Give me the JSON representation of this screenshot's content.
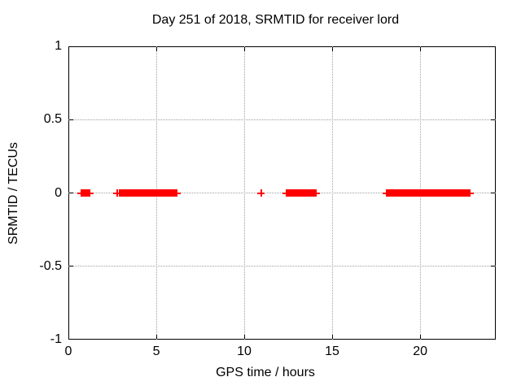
{
  "chart_data": {
    "type": "scatter",
    "title": "Day 251 of 2018, SRMTID for receiver lord",
    "xlabel": "GPS time / hours",
    "ylabel": "SRMTID / TECUs",
    "xlim": [
      0,
      24.3
    ],
    "ylim": [
      -1,
      1
    ],
    "xticks": [
      0,
      5,
      10,
      15,
      20
    ],
    "xtick_labels": [
      "0",
      "5",
      "10",
      "15",
      "20"
    ],
    "yticks": [
      -1,
      -0.5,
      0,
      0.5,
      1
    ],
    "ytick_labels": [
      "-1",
      "-0.5",
      "0",
      "0.5",
      "1"
    ],
    "grid": true,
    "legend": "none",
    "marker": "plus",
    "series": [
      {
        "name": "SRMTID",
        "color": "#ff0000",
        "constant_y_value": 0,
        "segments_hours": [
          [
            0.72,
            1.2
          ],
          [
            2.93,
            3.33
          ],
          [
            3.43,
            6.16
          ],
          [
            12.42,
            14.05
          ],
          [
            18.1,
            22.81
          ]
        ],
        "single_points_hours": [
          2.75,
          10.93
        ]
      }
    ],
    "colors": {
      "marker": "#ff0000",
      "grid": "#9e9e9e",
      "frame": "#000000",
      "background": "#ffffff",
      "text": "#000000"
    }
  }
}
